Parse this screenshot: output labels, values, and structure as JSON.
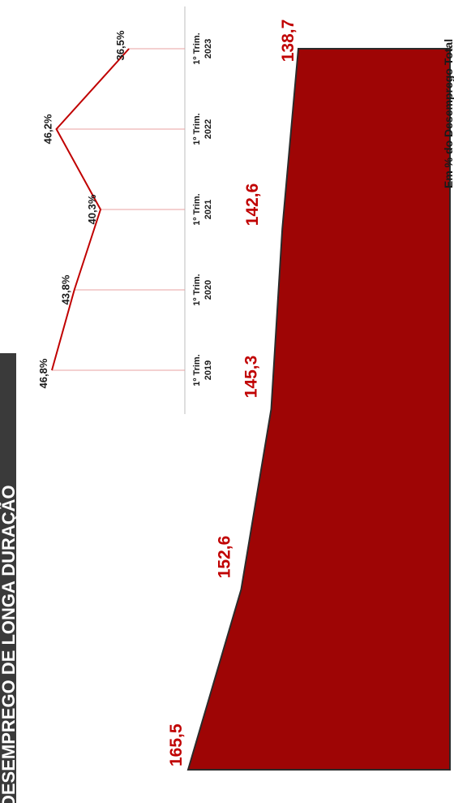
{
  "title": "DESEMPREGO DE LONGA DURAÇÃO",
  "colors": {
    "area_fill": "#9e0505",
    "label_red": "#c00000",
    "line_red": "#c00000",
    "grid": "#e8a0a0",
    "banner_bg": "#3a3a3a",
    "banner_text": "#ffffff"
  },
  "chart_data": [
    {
      "type": "area",
      "title": "",
      "unit": "",
      "categories": [
        "1º Trim. 2019",
        "1º Trim. 2020",
        "1º Trim. 2021",
        "1º Trim. 2022",
        "1º Trim. 2023"
      ],
      "values": [
        165.5,
        152.6,
        145.3,
        142.6,
        138.7
      ],
      "value_labels": [
        "165,5",
        "152,6",
        "145,3",
        "142,6",
        "138,7"
      ]
    },
    {
      "type": "line",
      "title": "Em % do Desemprego Total",
      "categories": [
        {
          "line1": "1º Trim.",
          "line2": "2019"
        },
        {
          "line1": "1º Trim.",
          "line2": "2020"
        },
        {
          "line1": "1º Trim.",
          "line2": "2021"
        },
        {
          "line1": "1º Trim.",
          "line2": "2022"
        },
        {
          "line1": "1º Trim.",
          "line2": "2023"
        }
      ],
      "values": [
        46.8,
        43.8,
        40.3,
        46.2,
        36.5
      ],
      "value_labels": [
        "46,8%",
        "43,8%",
        "40,3%",
        "46,2%",
        "36,5%"
      ]
    }
  ]
}
